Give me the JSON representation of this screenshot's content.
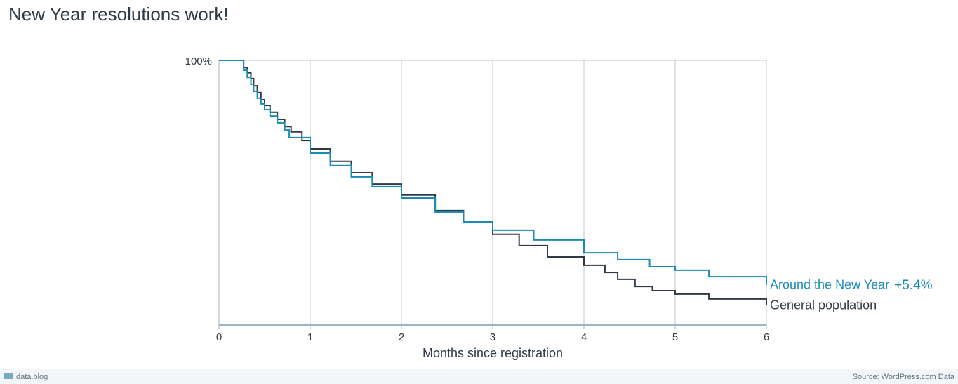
{
  "chart_data": {
    "type": "step-line",
    "title": "New Year resolutions work!",
    "xlabel": "Months since registration",
    "xlim": [
      0,
      6
    ],
    "xticks": [
      0,
      1,
      2,
      3,
      4,
      5,
      6
    ],
    "ylim": [
      30,
      100
    ],
    "yticks": [
      {
        "value": 100,
        "label": "100%"
      }
    ],
    "grid": true,
    "series": [
      {
        "name": "General population",
        "color": "#2e3a46",
        "x": [
          0,
          0.27,
          0.31,
          0.35,
          0.38,
          0.42,
          0.46,
          0.5,
          0.56,
          0.64,
          0.72,
          0.79,
          0.91,
          1.0,
          1.22,
          1.45,
          1.68,
          2.0,
          2.37,
          2.68,
          3.0,
          3.29,
          3.6,
          4.0,
          4.23,
          4.37,
          4.56,
          4.75,
          5.0,
          5.37,
          6.0
        ],
        "values": [
          100,
          98.1,
          96.7,
          95.2,
          93.3,
          91.5,
          89.6,
          88.1,
          86.3,
          84.4,
          82.5,
          81.1,
          78.8,
          76.6,
          73.3,
          70.3,
          67.3,
          64.4,
          60.3,
          57.3,
          54.0,
          51.0,
          48.0,
          45.8,
          43.9,
          42.1,
          40.2,
          39.1,
          38.2,
          36.9,
          35.2
        ]
      },
      {
        "name": "Around the New Year",
        "color": "#1a8bb3",
        "annotation": "+5.4%",
        "x": [
          0,
          0.27,
          0.31,
          0.35,
          0.38,
          0.42,
          0.46,
          0.5,
          0.56,
          0.64,
          0.72,
          0.77,
          1.0,
          1.22,
          1.45,
          1.68,
          2.0,
          2.37,
          2.68,
          3.0,
          3.45,
          4.0,
          4.37,
          4.72,
          5.0,
          5.37,
          6.0
        ],
        "values": [
          100,
          97.4,
          95.5,
          93.7,
          91.8,
          90.0,
          88.5,
          87.0,
          85.3,
          83.5,
          81.6,
          79.6,
          75.5,
          72.2,
          69.2,
          66.6,
          63.6,
          59.9,
          57.3,
          55.1,
          52.5,
          49.1,
          47.3,
          45.4,
          44.5,
          42.8,
          40.6
        ]
      }
    ]
  },
  "footer": {
    "brand": "data.blog",
    "source": "Source: WordPress.com Data"
  }
}
